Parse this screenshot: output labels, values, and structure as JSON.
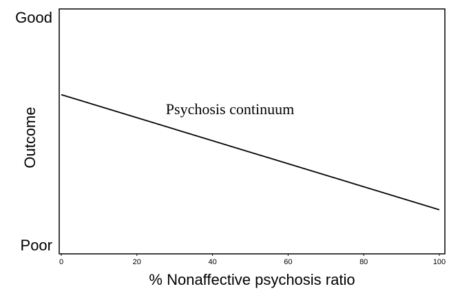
{
  "chart_data": {
    "type": "line",
    "x_label": "% Nonaffective psychosis ratio",
    "y_label": "Outcome",
    "annotation": "Psychosis continuum",
    "x": [
      0,
      100
    ],
    "values": [
      0.65,
      0.18
    ],
    "color": "#000000",
    "xlim": [
      0,
      100
    ],
    "xticks": [
      0,
      20,
      40,
      60,
      80,
      100
    ],
    "ylim": [
      0,
      1
    ],
    "yticks": [
      {
        "value": 0.96,
        "label": "Good"
      },
      {
        "value": 0.03,
        "label": "Poor"
      }
    ],
    "grid": false
  }
}
